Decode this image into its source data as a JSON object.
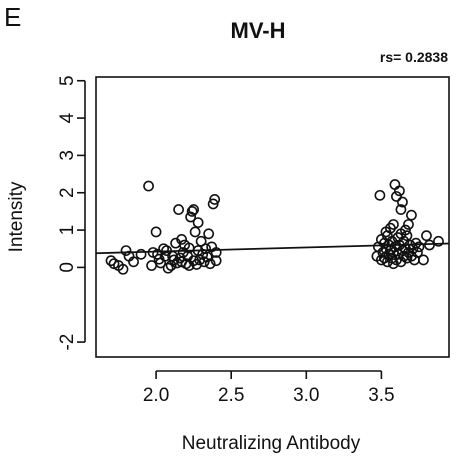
{
  "panel_label": "E",
  "chart_data": {
    "type": "scatter",
    "title": "MV-H",
    "annotation": "rs= 0.2838",
    "xlabel": "Neutralizing Antibody",
    "ylabel": "Intensity",
    "xlim": [
      1.6,
      3.95
    ],
    "ylim": [
      -2.4,
      5.1
    ],
    "x_ticks": [
      2.0,
      2.5,
      3.0,
      3.5
    ],
    "x_tick_labels": [
      "2.0",
      "2.5",
      "3.0",
      "3.5"
    ],
    "y_ticks": [
      -2,
      0,
      1,
      2,
      3,
      4,
      5
    ],
    "y_tick_labels": [
      "-2",
      "0",
      "1",
      "2",
      "3",
      "4",
      "5"
    ],
    "grid": false,
    "trend_line": {
      "x": [
        1.6,
        3.95
      ],
      "y": [
        0.38,
        0.64
      ]
    },
    "series": [
      {
        "points": [
          [
            1.7,
            0.18
          ],
          [
            1.72,
            0.1
          ],
          [
            1.75,
            0.05
          ],
          [
            1.78,
            -0.05
          ],
          [
            1.8,
            0.45
          ],
          [
            1.82,
            0.3
          ],
          [
            1.85,
            0.15
          ],
          [
            1.9,
            0.35
          ],
          [
            1.95,
            2.18
          ],
          [
            1.97,
            0.05
          ],
          [
            1.98,
            0.4
          ],
          [
            2.0,
            0.95
          ],
          [
            2.01,
            0.35
          ],
          [
            2.02,
            0.22
          ],
          [
            2.03,
            0.12
          ],
          [
            2.05,
            0.5
          ],
          [
            2.06,
            0.3
          ],
          [
            2.07,
            0.45
          ],
          [
            2.08,
            -0.02
          ],
          [
            2.1,
            0.05
          ],
          [
            2.11,
            0.3
          ],
          [
            2.12,
            0.2
          ],
          [
            2.14,
            0.12
          ],
          [
            2.15,
            1.55
          ],
          [
            2.16,
            0.25
          ],
          [
            2.17,
            0.15
          ],
          [
            2.18,
            0.4
          ],
          [
            2.19,
            0.6
          ],
          [
            2.2,
            0.1
          ],
          [
            2.21,
            0.3
          ],
          [
            2.22,
            0.52
          ],
          [
            2.23,
            1.35
          ],
          [
            2.24,
            1.5
          ],
          [
            2.25,
            0.18
          ],
          [
            2.25,
            1.55
          ],
          [
            2.26,
            0.95
          ],
          [
            2.27,
            0.08
          ],
          [
            2.28,
            0.45
          ],
          [
            2.29,
            0.2
          ],
          [
            2.3,
            0.7
          ],
          [
            2.31,
            0.35
          ],
          [
            2.32,
            0.15
          ],
          [
            2.33,
            0.5
          ],
          [
            2.34,
            0.28
          ],
          [
            2.35,
            0.9
          ],
          [
            2.36,
            0.1
          ],
          [
            2.37,
            0.55
          ],
          [
            2.38,
            1.7
          ],
          [
            2.39,
            1.82
          ],
          [
            2.4,
            0.4
          ],
          [
            2.4,
            0.18
          ],
          [
            2.13,
            0.65
          ],
          [
            2.17,
            0.75
          ],
          [
            2.22,
            0.05
          ],
          [
            2.28,
            1.2
          ],
          [
            3.47,
            0.3
          ],
          [
            3.48,
            0.55
          ],
          [
            3.49,
            1.93
          ],
          [
            3.5,
            0.2
          ],
          [
            3.5,
            0.75
          ],
          [
            3.51,
            0.4
          ],
          [
            3.52,
            0.65
          ],
          [
            3.52,
            0.25
          ],
          [
            3.53,
            0.5
          ],
          [
            3.54,
            0.85
          ],
          [
            3.54,
            0.15
          ],
          [
            3.55,
            0.35
          ],
          [
            3.55,
            0.6
          ],
          [
            3.56,
            1.05
          ],
          [
            3.56,
            0.45
          ],
          [
            3.57,
            0.25
          ],
          [
            3.57,
            0.7
          ],
          [
            3.58,
            1.15
          ],
          [
            3.58,
            0.4
          ],
          [
            3.59,
            2.22
          ],
          [
            3.59,
            0.55
          ],
          [
            3.6,
            0.2
          ],
          [
            3.6,
            1.9
          ],
          [
            3.61,
            0.8
          ],
          [
            3.61,
            0.35
          ],
          [
            3.62,
            2.05
          ],
          [
            3.62,
            0.6
          ],
          [
            3.63,
            0.15
          ],
          [
            3.63,
            1.55
          ],
          [
            3.64,
            0.45
          ],
          [
            3.64,
            1.75
          ],
          [
            3.65,
            0.3
          ],
          [
            3.65,
            0.7
          ],
          [
            3.66,
            1.0
          ],
          [
            3.66,
            0.5
          ],
          [
            3.67,
            0.25
          ],
          [
            3.67,
            0.85
          ],
          [
            3.68,
            0.4
          ],
          [
            3.69,
            0.6
          ],
          [
            3.7,
            1.4
          ],
          [
            3.7,
            0.3
          ],
          [
            3.71,
            0.5
          ],
          [
            3.72,
            0.2
          ],
          [
            3.73,
            0.65
          ],
          [
            3.74,
            0.4
          ],
          [
            3.75,
            0.55
          ],
          [
            3.78,
            0.2
          ],
          [
            3.8,
            0.85
          ],
          [
            3.82,
            0.6
          ],
          [
            3.88,
            0.7
          ],
          [
            3.53,
            0.95
          ],
          [
            3.58,
            0.1
          ],
          [
            3.63,
            0.9
          ],
          [
            3.68,
            1.15
          ]
        ]
      }
    ]
  }
}
